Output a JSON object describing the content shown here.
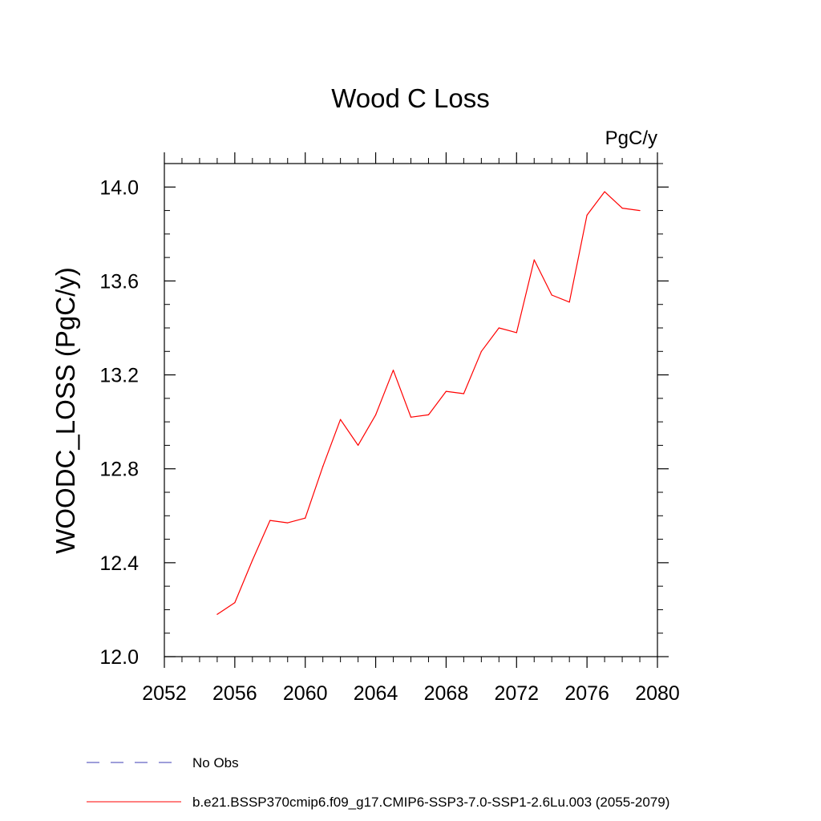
{
  "chart_data": {
    "type": "line",
    "title": "Wood C Loss",
    "units_label": "PgC/y",
    "ylabel": "WOODC_LOSS  (PgC/y)",
    "xlabel": "",
    "xlim": [
      2052,
      2080
    ],
    "ylim": [
      12.0,
      14.1
    ],
    "x_ticks": [
      2052,
      2056,
      2060,
      2064,
      2068,
      2072,
      2076,
      2080
    ],
    "x_tick_labels": [
      "2052",
      "2056",
      "2060",
      "2064",
      "2068",
      "2072",
      "2076",
      "2080"
    ],
    "y_ticks": [
      12.0,
      12.4,
      12.8,
      13.2,
      13.6,
      14.0
    ],
    "y_tick_labels": [
      "12.0",
      "12.4",
      "12.8",
      "13.2",
      "13.6",
      "14.0"
    ],
    "x_minor_step": 1,
    "y_minor_step": 0.1,
    "grid": false,
    "legend_position": "bottom",
    "series": [
      {
        "name": "b.e21.BSSP370cmip6.f09_g17.CMIP6-SSP3-7.0-SSP1-2.6Lu.003 (2055-2079)",
        "color": "#ff0000",
        "style": "solid",
        "x": [
          2055,
          2056,
          2057,
          2058,
          2059,
          2060,
          2061,
          2062,
          2063,
          2064,
          2065,
          2066,
          2067,
          2068,
          2069,
          2070,
          2071,
          2072,
          2073,
          2074,
          2075,
          2076,
          2077,
          2078,
          2079
        ],
        "y": [
          12.18,
          12.23,
          12.41,
          12.58,
          12.57,
          12.59,
          12.81,
          13.01,
          12.9,
          13.03,
          13.22,
          13.02,
          13.03,
          13.13,
          13.12,
          13.3,
          13.4,
          13.38,
          13.69,
          13.54,
          13.51,
          13.88,
          13.98,
          13.91,
          13.9
        ]
      }
    ],
    "legend": [
      {
        "label": "No Obs",
        "color": "#3c3cb4",
        "style": "dashed"
      },
      {
        "label": "b.e21.BSSP370cmip6.f09_g17.CMIP6-SSP3-7.0-SSP1-2.6Lu.003 (2055-2079)",
        "color": "#ff0000",
        "style": "solid"
      }
    ]
  }
}
